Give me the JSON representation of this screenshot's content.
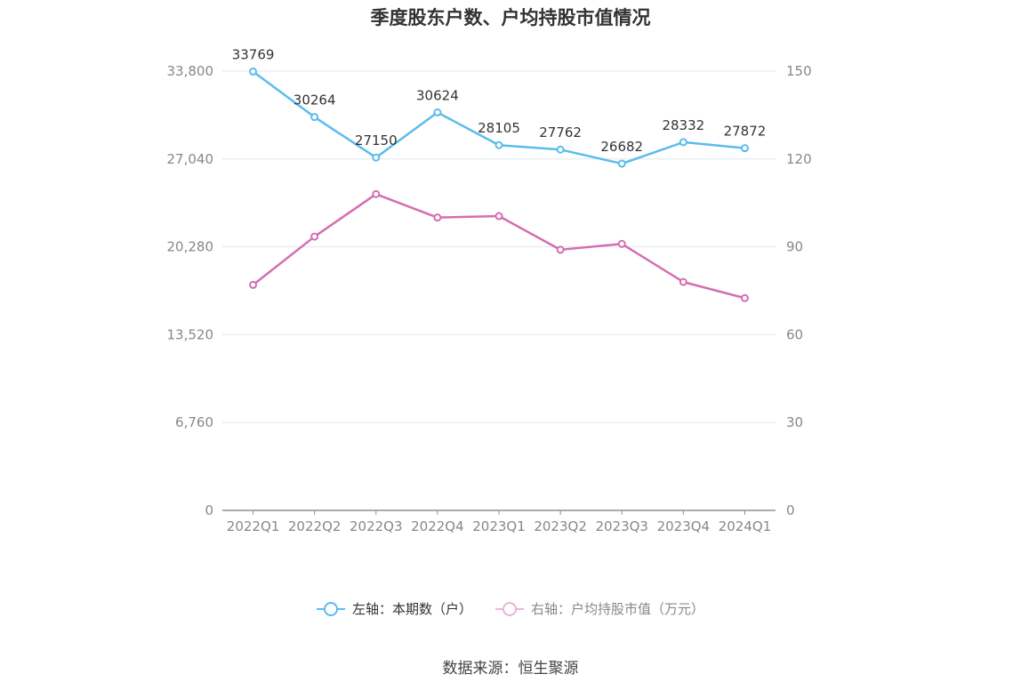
{
  "title": "季度股东户数、户均持股市值情况",
  "source": "数据来源：恒生聚源",
  "colors": {
    "left_series": "#5bbcec",
    "right_series": "#d46eb2",
    "grid": "#e3e6ee",
    "axis": "#8a8f99",
    "tick_text": "#888888"
  },
  "chart_data": {
    "type": "line",
    "categories": [
      "2022Q1",
      "2022Q2",
      "2022Q3",
      "2022Q4",
      "2023Q1",
      "2023Q2",
      "2023Q3",
      "2023Q4",
      "2024Q1"
    ],
    "left_axis": {
      "ticks": [
        "0",
        "6,760",
        "13,520",
        "20,280",
        "27,040",
        "33,800"
      ],
      "ylim": [
        0,
        33800
      ]
    },
    "right_axis": {
      "ticks": [
        "0",
        "30",
        "60",
        "90",
        "120",
        "150"
      ],
      "ylim": [
        0,
        150
      ]
    },
    "grid": true,
    "legend_position": "bottom",
    "series": [
      {
        "name": "左轴：本期数（户）",
        "axis": "left",
        "values": [
          33769,
          30264,
          27150,
          30624,
          28105,
          27762,
          26682,
          28332,
          27872
        ],
        "data_labels": true
      },
      {
        "name": "右轴：户均持股市值（万元）",
        "axis": "right",
        "values": [
          77,
          93.5,
          108,
          100,
          100.5,
          89,
          91,
          78,
          72.5
        ],
        "data_labels": false
      }
    ]
  }
}
